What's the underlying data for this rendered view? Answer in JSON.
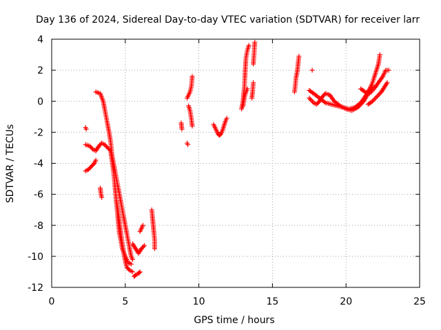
{
  "chart_data": {
    "type": "scatter",
    "title": "Day 136 of 2024, Sidereal Day-to-day VTEC variation (SDTVAR) for receiver larr",
    "xlabel": "GPS time / hours",
    "ylabel": "SDTVAR / TECUs",
    "xlim": [
      0,
      25
    ],
    "ylim": [
      -12,
      4
    ],
    "xticks": [
      0,
      5,
      10,
      15,
      20,
      25
    ],
    "yticks": [
      -12,
      -10,
      -8,
      -6,
      -4,
      -2,
      0,
      2,
      4
    ],
    "grid": true,
    "marker": "+",
    "color": "#ff0000",
    "segments": [
      [
        [
          2.3,
          -1.7
        ],
        [
          2.35,
          -1.8
        ]
      ],
      [
        [
          2.3,
          -4.5
        ],
        [
          2.5,
          -4.4
        ],
        [
          2.7,
          -4.2
        ],
        [
          2.9,
          -4.0
        ],
        [
          3.0,
          -3.8
        ]
      ],
      [
        [
          2.3,
          -2.8
        ],
        [
          2.6,
          -2.9
        ],
        [
          2.8,
          -3.1
        ],
        [
          3.0,
          -3.2
        ],
        [
          3.2,
          -2.9
        ],
        [
          3.4,
          -2.7
        ],
        [
          3.6,
          -2.8
        ],
        [
          3.8,
          -3.0
        ],
        [
          4.0,
          -3.2
        ],
        [
          4.1,
          -3.8
        ],
        [
          4.2,
          -4.5
        ],
        [
          4.3,
          -5.5
        ],
        [
          4.4,
          -6.5
        ],
        [
          4.5,
          -7.5
        ],
        [
          4.6,
          -8.5
        ],
        [
          4.7,
          -9.0
        ],
        [
          4.8,
          -9.5
        ],
        [
          5.0,
          -10.0
        ],
        [
          5.2,
          -10.4
        ],
        [
          5.4,
          -10.5
        ]
      ],
      [
        [
          3.3,
          -5.6
        ],
        [
          3.35,
          -6.0
        ],
        [
          3.4,
          -6.2
        ]
      ],
      [
        [
          3.0,
          0.6
        ],
        [
          3.3,
          0.5
        ],
        [
          3.5,
          0.0
        ],
        [
          3.6,
          -0.5
        ],
        [
          3.7,
          -1.0
        ],
        [
          3.8,
          -1.5
        ],
        [
          3.9,
          -2.0
        ],
        [
          4.0,
          -2.6
        ],
        [
          4.05,
          -3.0
        ],
        [
          4.1,
          -3.5
        ],
        [
          4.2,
          -4.0
        ],
        [
          4.3,
          -4.5
        ],
        [
          4.4,
          -5.0
        ],
        [
          4.5,
          -5.5
        ],
        [
          4.6,
          -6.0
        ],
        [
          4.7,
          -6.5
        ],
        [
          4.8,
          -7.0
        ],
        [
          4.9,
          -7.5
        ],
        [
          5.0,
          -8.0
        ],
        [
          5.1,
          -8.5
        ],
        [
          5.2,
          -9.0
        ],
        [
          5.3,
          -9.5
        ],
        [
          5.4,
          -10.0
        ],
        [
          5.5,
          -10.2
        ]
      ],
      [
        [
          4.4,
          -6.5
        ],
        [
          4.5,
          -7.0
        ],
        [
          4.6,
          -7.8
        ],
        [
          4.7,
          -8.5
        ],
        [
          4.8,
          -9.2
        ],
        [
          4.9,
          -9.8
        ],
        [
          5.0,
          -10.3
        ],
        [
          5.1,
          -10.7
        ],
        [
          5.3,
          -10.9
        ],
        [
          5.5,
          -11.0
        ]
      ],
      [
        [
          5.5,
          -9.2
        ],
        [
          5.7,
          -9.5
        ],
        [
          5.9,
          -9.8
        ],
        [
          6.1,
          -9.5
        ],
        [
          6.3,
          -9.3
        ]
      ],
      [
        [
          5.6,
          -11.3
        ],
        [
          5.7,
          -11.2
        ],
        [
          5.9,
          -11.1
        ],
        [
          6.0,
          -11.0
        ]
      ],
      [
        [
          6.0,
          -8.4
        ],
        [
          6.1,
          -8.2
        ],
        [
          6.2,
          -8.0
        ]
      ],
      [
        [
          6.8,
          -7.0
        ],
        [
          6.85,
          -7.5
        ],
        [
          6.9,
          -8.0
        ],
        [
          6.95,
          -8.5
        ],
        [
          7.0,
          -9.0
        ],
        [
          7.0,
          -9.5
        ]
      ],
      [
        [
          8.8,
          -1.4
        ],
        [
          8.85,
          -1.8
        ]
      ],
      [
        [
          9.2,
          -2.7
        ],
        [
          9.25,
          -2.8
        ]
      ],
      [
        [
          9.2,
          0.2
        ],
        [
          9.3,
          0.4
        ],
        [
          9.4,
          0.6
        ],
        [
          9.5,
          1.0
        ],
        [
          9.55,
          1.6
        ]
      ],
      [
        [
          9.3,
          -0.3
        ],
        [
          9.4,
          -0.6
        ],
        [
          9.5,
          -1.2
        ],
        [
          9.55,
          -1.6
        ]
      ],
      [
        [
          11.0,
          -1.5
        ],
        [
          11.1,
          -1.7
        ],
        [
          11.2,
          -1.9
        ],
        [
          11.3,
          -2.1
        ],
        [
          11.4,
          -2.2
        ],
        [
          11.5,
          -2.1
        ],
        [
          11.6,
          -1.9
        ],
        [
          11.7,
          -1.6
        ],
        [
          11.8,
          -1.3
        ],
        [
          11.9,
          -1.1
        ]
      ],
      [
        [
          12.9,
          -0.5
        ],
        [
          13.0,
          0.0
        ],
        [
          13.05,
          0.5
        ],
        [
          13.1,
          1.0
        ],
        [
          13.15,
          2.0
        ],
        [
          13.2,
          2.8
        ],
        [
          13.3,
          3.3
        ],
        [
          13.4,
          3.6
        ]
      ],
      [
        [
          13.0,
          -0.3
        ],
        [
          13.1,
          0.3
        ],
        [
          13.2,
          0.6
        ],
        [
          13.3,
          0.8
        ]
      ],
      [
        [
          13.6,
          0.2
        ],
        [
          13.65,
          0.6
        ],
        [
          13.7,
          1.2
        ]
      ],
      [
        [
          13.7,
          2.4
        ],
        [
          13.75,
          3.0
        ],
        [
          13.8,
          3.8
        ]
      ],
      [
        [
          16.5,
          0.6
        ],
        [
          16.55,
          1.0
        ],
        [
          16.6,
          1.5
        ],
        [
          16.7,
          2.0
        ],
        [
          16.75,
          2.5
        ],
        [
          16.8,
          2.9
        ]
      ],
      [
        [
          17.7,
          2.0
        ]
      ],
      [
        [
          17.5,
          0.7
        ],
        [
          17.8,
          0.5
        ],
        [
          18.2,
          0.2
        ],
        [
          18.6,
          -0.1
        ],
        [
          19.0,
          -0.2
        ],
        [
          19.4,
          -0.3
        ],
        [
          19.8,
          -0.4
        ],
        [
          20.2,
          -0.5
        ],
        [
          20.6,
          -0.4
        ],
        [
          21.0,
          -0.1
        ],
        [
          21.3,
          0.3
        ],
        [
          21.6,
          0.8
        ],
        [
          21.8,
          1.2
        ],
        [
          22.0,
          1.8
        ],
        [
          22.2,
          2.4
        ],
        [
          22.3,
          3.0
        ]
      ],
      [
        [
          17.5,
          0.2
        ],
        [
          17.8,
          -0.1
        ],
        [
          18.0,
          -0.2
        ],
        [
          18.2,
          0.0
        ],
        [
          18.4,
          0.3
        ],
        [
          18.6,
          0.5
        ],
        [
          18.9,
          0.4
        ],
        [
          19.2,
          0.0
        ],
        [
          19.6,
          -0.3
        ],
        [
          20.0,
          -0.5
        ],
        [
          20.4,
          -0.6
        ],
        [
          20.8,
          -0.4
        ],
        [
          21.2,
          0.0
        ],
        [
          21.5,
          0.5
        ],
        [
          21.8,
          1.0
        ]
      ],
      [
        [
          21.0,
          0.8
        ],
        [
          21.3,
          0.6
        ],
        [
          21.6,
          0.5
        ],
        [
          21.9,
          0.8
        ],
        [
          22.2,
          1.2
        ],
        [
          22.5,
          1.6
        ],
        [
          22.7,
          2.0
        ],
        [
          22.9,
          2.0
        ]
      ],
      [
        [
          21.5,
          -0.2
        ],
        [
          21.8,
          0.0
        ],
        [
          22.1,
          0.3
        ],
        [
          22.4,
          0.6
        ],
        [
          22.6,
          0.9
        ],
        [
          22.8,
          1.2
        ]
      ]
    ]
  }
}
